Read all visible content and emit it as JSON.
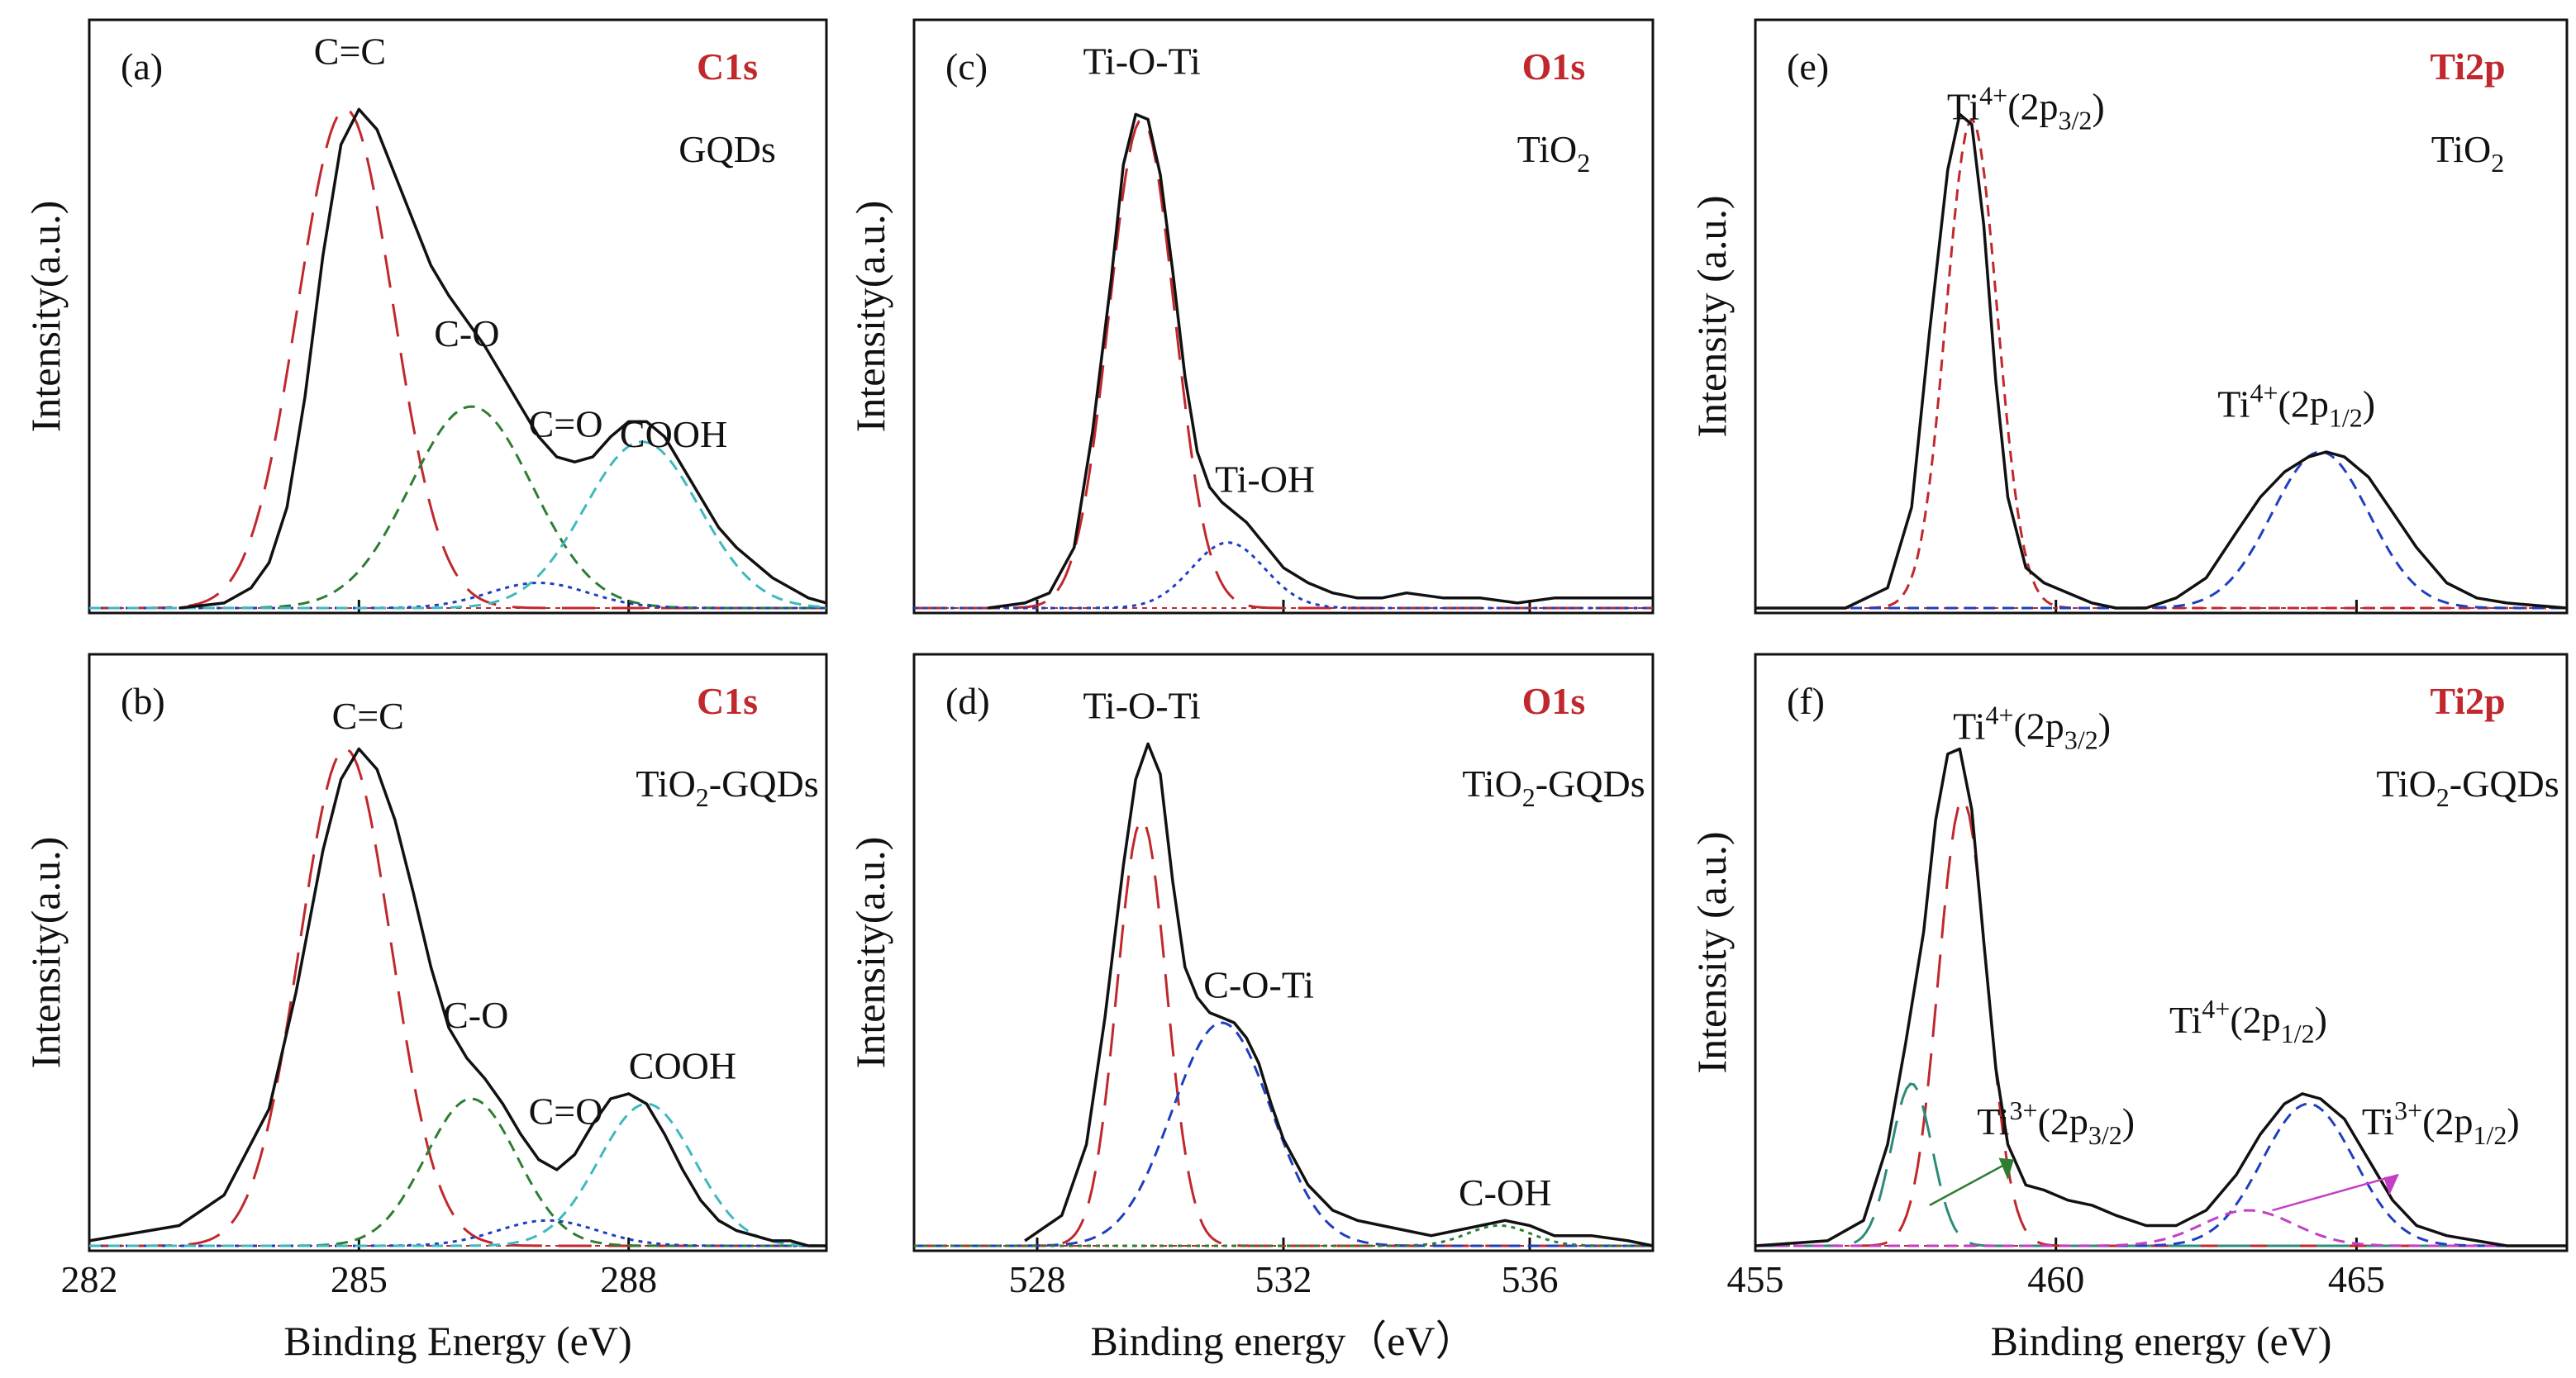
{
  "figure": {
    "panels": [
      {
        "tag": "(a)",
        "core": "C1s",
        "sample": "GQDs",
        "ylabel": "Intensity(a.u.)"
      },
      {
        "tag": "(b)",
        "core": "C1s",
        "sample": "TiO2-GQDs",
        "ylabel": "Intensity(a.u.)",
        "xlabel": "Binding Energy (eV)"
      },
      {
        "tag": "(c)",
        "core": "O1s",
        "sample": "TiO2",
        "ylabel": "Intensity(a.u.)"
      },
      {
        "tag": "(d)",
        "core": "O1s",
        "sample": "TiO2-GQDs",
        "ylabel": "Intensity(a.u.)",
        "xlabel": "Binding energy（eV）"
      },
      {
        "tag": "(e)",
        "core": "Ti2p",
        "sample": "TiO2",
        "ylabel": "Intensity (a.u.)"
      },
      {
        "tag": "(f)",
        "core": "Ti2p",
        "sample": "TiO2-GQDs",
        "ylabel": "Intensity (a.u.)",
        "xlabel": "Binding energy (eV)"
      }
    ]
  },
  "colors": {
    "frame": "#111111",
    "envelope": "#111111",
    "core_label": "#c0282d",
    "red": "#c0282d",
    "green": "#2e7d32",
    "blue": "#1f3fbf",
    "cyan": "#3fb8c0",
    "purple": "#c43fc4",
    "teal": "#2e8b7a"
  },
  "chart_data": [
    {
      "id": "a",
      "type": "line",
      "xlim": [
        282,
        290.2
      ],
      "ylim": [
        0,
        1.02
      ],
      "xticks": [
        282,
        285,
        288
      ],
      "xtick_labels": [
        "",
        "",
        ""
      ],
      "envelope": {
        "x": [
          283.0,
          283.5,
          283.8,
          284.0,
          284.2,
          284.4,
          284.6,
          284.8,
          285.0,
          285.2,
          285.4,
          285.6,
          285.8,
          286.0,
          286.2,
          286.4,
          286.6,
          286.8,
          287.0,
          287.2,
          287.4,
          287.6,
          287.8,
          288.0,
          288.2,
          288.4,
          288.6,
          288.8,
          289.0,
          289.2,
          289.4,
          289.6,
          289.8,
          290.0,
          290.2
        ],
        "y": [
          0.0,
          0.01,
          0.04,
          0.09,
          0.2,
          0.42,
          0.7,
          0.92,
          0.99,
          0.95,
          0.86,
          0.77,
          0.68,
          0.62,
          0.57,
          0.52,
          0.46,
          0.4,
          0.34,
          0.3,
          0.29,
          0.3,
          0.34,
          0.37,
          0.37,
          0.34,
          0.28,
          0.22,
          0.16,
          0.12,
          0.09,
          0.06,
          0.04,
          0.02,
          0.01
        ]
      },
      "components": [
        {
          "label": "C=C",
          "shape": "gaussian",
          "center": 284.85,
          "fwhm": 1.25,
          "height": 0.99,
          "color": "red",
          "dash": "long"
        },
        {
          "label": "C-O",
          "shape": "gaussian",
          "center": 286.25,
          "fwhm": 1.6,
          "height": 0.4,
          "color": "green",
          "dash": "short"
        },
        {
          "label": "C=O",
          "shape": "gaussian",
          "center": 287.0,
          "fwhm": 1.3,
          "height": 0.05,
          "color": "blue",
          "dash": "dot"
        },
        {
          "label": "COOH",
          "shape": "gaussian",
          "center": 288.15,
          "fwhm": 1.5,
          "height": 0.33,
          "color": "cyan",
          "dash": "short"
        }
      ],
      "annotations": [
        {
          "text": "C=C",
          "x": 284.9,
          "y": 1.08
        },
        {
          "text": "C-O",
          "x": 286.2,
          "y": 0.52
        },
        {
          "text": "C=O",
          "x": 287.3,
          "y": 0.34
        },
        {
          "text": "COOH",
          "x": 288.5,
          "y": 0.32
        }
      ]
    },
    {
      "id": "b",
      "type": "line",
      "xlim": [
        282,
        290.2
      ],
      "ylim": [
        0,
        1.02
      ],
      "xticks": [
        282,
        285,
        288
      ],
      "xtick_labels": [
        "282",
        "285",
        "288"
      ],
      "envelope": {
        "x": [
          282.0,
          283.0,
          283.5,
          284.0,
          284.3,
          284.6,
          284.8,
          285.0,
          285.2,
          285.4,
          285.6,
          285.8,
          286.0,
          286.2,
          286.4,
          286.6,
          286.8,
          287.0,
          287.2,
          287.4,
          287.6,
          287.8,
          288.0,
          288.2,
          288.4,
          288.6,
          288.8,
          289.0,
          289.2,
          289.4,
          289.6,
          289.8,
          290.0,
          290.2
        ],
        "y": [
          0.01,
          0.04,
          0.1,
          0.27,
          0.5,
          0.78,
          0.92,
          0.98,
          0.94,
          0.84,
          0.7,
          0.55,
          0.43,
          0.37,
          0.33,
          0.28,
          0.22,
          0.17,
          0.15,
          0.18,
          0.24,
          0.29,
          0.3,
          0.28,
          0.22,
          0.15,
          0.09,
          0.05,
          0.03,
          0.02,
          0.01,
          0.01,
          0.0,
          0.0
        ]
      },
      "components": [
        {
          "label": "C=C",
          "shape": "gaussian",
          "center": 284.85,
          "fwhm": 1.2,
          "height": 0.98,
          "color": "red",
          "dash": "long"
        },
        {
          "label": "C-O",
          "shape": "gaussian",
          "center": 286.25,
          "fwhm": 1.2,
          "height": 0.29,
          "color": "green",
          "dash": "short"
        },
        {
          "label": "C=O",
          "shape": "gaussian",
          "center": 287.1,
          "fwhm": 1.3,
          "height": 0.05,
          "color": "blue",
          "dash": "dot"
        },
        {
          "label": "COOH",
          "shape": "gaussian",
          "center": 288.2,
          "fwhm": 1.25,
          "height": 0.28,
          "color": "cyan",
          "dash": "short"
        }
      ],
      "annotations": [
        {
          "text": "C=C",
          "x": 285.1,
          "y": 1.02
        },
        {
          "text": "C-O",
          "x": 286.3,
          "y": 0.43
        },
        {
          "text": "C=O",
          "x": 287.3,
          "y": 0.24
        },
        {
          "text": "COOH",
          "x": 288.6,
          "y": 0.33
        }
      ]
    },
    {
      "id": "c",
      "type": "line",
      "xlim": [
        526,
        538
      ],
      "ylim": [
        0,
        1.02
      ],
      "xticks": [
        528,
        532,
        536
      ],
      "xtick_labels": [
        "",
        "",
        ""
      ],
      "envelope": {
        "x": [
          527.2,
          527.8,
          528.2,
          528.6,
          528.9,
          529.2,
          529.4,
          529.6,
          529.8,
          530.0,
          530.2,
          530.4,
          530.6,
          530.8,
          531.0,
          531.2,
          531.4,
          531.6,
          531.8,
          532.0,
          532.4,
          532.8,
          533.2,
          533.6,
          534.0,
          534.6,
          535.2,
          535.8,
          536.4,
          537.0,
          537.6,
          538.0
        ],
        "y": [
          0.0,
          0.01,
          0.03,
          0.12,
          0.35,
          0.65,
          0.88,
          0.98,
          0.97,
          0.86,
          0.67,
          0.46,
          0.31,
          0.24,
          0.21,
          0.19,
          0.17,
          0.14,
          0.11,
          0.08,
          0.05,
          0.03,
          0.02,
          0.02,
          0.03,
          0.02,
          0.02,
          0.01,
          0.02,
          0.02,
          0.02,
          0.02
        ]
      },
      "components": [
        {
          "label": "Ti-O-Ti",
          "shape": "gaussian",
          "center": 529.7,
          "fwhm": 1.25,
          "height": 0.97,
          "color": "red",
          "dash": "long"
        },
        {
          "label": "Ti-OH",
          "shape": "gaussian",
          "center": 531.1,
          "fwhm": 1.4,
          "height": 0.13,
          "color": "blue",
          "dash": "dot"
        }
      ],
      "annotations": [
        {
          "text": "Ti-O-Ti",
          "x": 529.7,
          "y": 1.06
        },
        {
          "text": "Ti-OH",
          "x": 531.7,
          "y": 0.23
        }
      ]
    },
    {
      "id": "d",
      "type": "line",
      "xlim": [
        526,
        538
      ],
      "ylim": [
        0,
        1.02
      ],
      "xticks": [
        528,
        532,
        536
      ],
      "xtick_labels": [
        "528",
        "532",
        "536"
      ],
      "envelope": {
        "x": [
          527.8,
          528.4,
          528.8,
          529.1,
          529.4,
          529.6,
          529.8,
          530.0,
          530.2,
          530.4,
          530.6,
          530.8,
          531.0,
          531.2,
          531.4,
          531.6,
          531.8,
          532.0,
          532.4,
          532.8,
          533.2,
          533.6,
          534.0,
          534.4,
          534.8,
          535.2,
          535.6,
          536.0,
          536.4,
          537.0,
          537.6,
          538.0
        ],
        "y": [
          0.01,
          0.06,
          0.2,
          0.45,
          0.75,
          0.92,
          0.99,
          0.93,
          0.72,
          0.55,
          0.49,
          0.46,
          0.45,
          0.44,
          0.41,
          0.36,
          0.28,
          0.21,
          0.12,
          0.07,
          0.05,
          0.04,
          0.03,
          0.02,
          0.03,
          0.04,
          0.05,
          0.04,
          0.02,
          0.02,
          0.01,
          0.0
        ]
      },
      "components": [
        {
          "label": "Ti-O-Ti",
          "shape": "gaussian",
          "center": 529.7,
          "fwhm": 0.95,
          "height": 0.84,
          "color": "red",
          "dash": "long"
        },
        {
          "label": "C-O-Ti",
          "shape": "gaussian",
          "center": 531.0,
          "fwhm": 1.9,
          "height": 0.44,
          "color": "blue",
          "dash": "short"
        },
        {
          "label": "C-OH",
          "shape": "gaussian",
          "center": 535.5,
          "fwhm": 1.2,
          "height": 0.04,
          "color": "green",
          "dash": "dot"
        }
      ],
      "annotations": [
        {
          "text": "Ti-O-Ti",
          "x": 529.7,
          "y": 1.04
        },
        {
          "text": "C-O-Ti",
          "x": 531.6,
          "y": 0.49
        },
        {
          "text": "C-OH",
          "x": 535.6,
          "y": 0.08
        }
      ]
    },
    {
      "id": "e",
      "type": "line",
      "xlim": [
        455,
        468.5
      ],
      "ylim": [
        0,
        1.02
      ],
      "xticks": [
        455,
        460,
        465
      ],
      "xtick_labels": [
        "",
        "",
        ""
      ],
      "envelope": {
        "x": [
          455.0,
          456.5,
          457.2,
          457.6,
          457.9,
          458.2,
          458.4,
          458.6,
          458.8,
          459.0,
          459.2,
          459.5,
          459.8,
          460.2,
          460.6,
          461.0,
          461.5,
          462.0,
          462.5,
          463.0,
          463.4,
          463.8,
          464.2,
          464.5,
          464.8,
          465.2,
          465.6,
          466.0,
          466.5,
          467.0,
          467.5,
          468.5
        ],
        "y": [
          0.0,
          0.0,
          0.04,
          0.2,
          0.55,
          0.87,
          0.98,
          0.96,
          0.76,
          0.45,
          0.22,
          0.08,
          0.05,
          0.03,
          0.01,
          0.0,
          0.0,
          0.02,
          0.06,
          0.15,
          0.22,
          0.27,
          0.3,
          0.31,
          0.3,
          0.26,
          0.19,
          0.12,
          0.05,
          0.02,
          0.01,
          0.0
        ]
      },
      "components": [
        {
          "label": "Ti4+(2p3/2)",
          "shape": "gaussian",
          "center": 458.6,
          "fwhm": 1.0,
          "height": 0.97,
          "color": "red",
          "dash": "short"
        },
        {
          "label": "Ti4+(2p1/2)",
          "shape": "gaussian",
          "center": 464.4,
          "fwhm": 1.9,
          "height": 0.31,
          "color": "blue",
          "dash": "short"
        }
      ],
      "annotations": [
        {
          "text": "Ti4+(2p3/2)",
          "x": 459.5,
          "y": 0.97
        },
        {
          "text": "Ti4+(2p1/2)",
          "x": 464.0,
          "y": 0.38
        }
      ]
    },
    {
      "id": "f",
      "type": "line",
      "xlim": [
        455,
        468.5
      ],
      "ylim": [
        0,
        1.02
      ],
      "xticks": [
        455,
        460,
        465
      ],
      "xtick_labels": [
        "455",
        "460",
        "465"
      ],
      "envelope": {
        "x": [
          455.0,
          456.2,
          456.8,
          457.2,
          457.5,
          457.8,
          458.0,
          458.2,
          458.4,
          458.6,
          458.8,
          459.0,
          459.2,
          459.5,
          459.8,
          460.2,
          460.6,
          461.0,
          461.5,
          462.0,
          462.5,
          463.0,
          463.4,
          463.8,
          464.1,
          464.4,
          464.8,
          465.2,
          465.6,
          466.0,
          466.5,
          467.0,
          467.5,
          468.5
        ],
        "y": [
          0.0,
          0.01,
          0.05,
          0.2,
          0.4,
          0.62,
          0.84,
          0.97,
          0.98,
          0.86,
          0.6,
          0.35,
          0.2,
          0.12,
          0.11,
          0.09,
          0.08,
          0.06,
          0.04,
          0.04,
          0.07,
          0.14,
          0.22,
          0.28,
          0.3,
          0.29,
          0.25,
          0.17,
          0.09,
          0.04,
          0.02,
          0.01,
          0.0,
          0.0
        ]
      },
      "components": [
        {
          "label": "Ti4+(2p3/2)",
          "shape": "gaussian",
          "center": 458.45,
          "fwhm": 0.95,
          "height": 0.88,
          "color": "red",
          "dash": "long"
        },
        {
          "label": "Ti3+(2p3/2)",
          "shape": "gaussian",
          "center": 457.6,
          "fwhm": 0.8,
          "height": 0.32,
          "color": "teal",
          "dash": "long"
        },
        {
          "label": "Ti4+(2p1/2)",
          "shape": "gaussian",
          "center": 464.2,
          "fwhm": 1.8,
          "height": 0.28,
          "color": "blue",
          "dash": "short"
        },
        {
          "label": "Ti3+(2p1/2)",
          "shape": "gaussian",
          "center": 463.2,
          "fwhm": 1.8,
          "height": 0.07,
          "color": "purple",
          "dash": "short"
        }
      ],
      "annotations": [
        {
          "text": "Ti4+(2p3/2)",
          "x": 459.6,
          "y": 1.0
        },
        {
          "text": "Ti4+(2p1/2)",
          "x": 463.2,
          "y": 0.42
        },
        {
          "text": "Ti3+(2p3/2)",
          "x": 460.0,
          "y": 0.22
        },
        {
          "text": "Ti3+(2p1/2)",
          "x": 466.4,
          "y": 0.22
        }
      ]
    }
  ]
}
